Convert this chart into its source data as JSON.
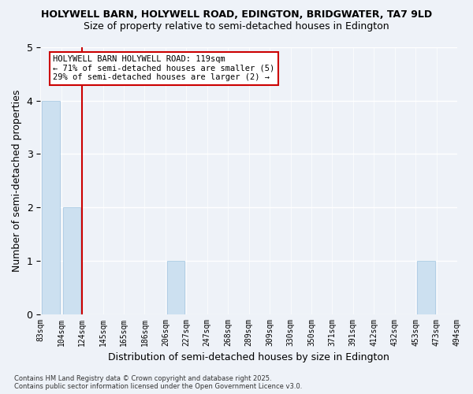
{
  "title1": "HOLYWELL BARN, HOLYWELL ROAD, EDINGTON, BRIDGWATER, TA7 9LD",
  "title2": "Size of property relative to semi-detached houses in Edington",
  "xlabel": "Distribution of semi-detached houses by size in Edington",
  "ylabel": "Number of semi-detached properties",
  "bin_labels": [
    "83sqm",
    "104sqm",
    "124sqm",
    "145sqm",
    "165sqm",
    "186sqm",
    "206sqm",
    "227sqm",
    "247sqm",
    "268sqm",
    "289sqm",
    "309sqm",
    "330sqm",
    "350sqm",
    "371sqm",
    "391sqm",
    "412sqm",
    "432sqm",
    "453sqm",
    "473sqm",
    "494sqm"
  ],
  "values": [
    4,
    2,
    0,
    0,
    0,
    0,
    1,
    0,
    0,
    0,
    0,
    0,
    0,
    0,
    0,
    0,
    0,
    0,
    1,
    0
  ],
  "annotation_title": "HOLYWELL BARN HOLYWELL ROAD: 119sqm",
  "annotation_line1": "← 71% of semi-detached houses are smaller (5)",
  "annotation_line2": "29% of semi-detached houses are larger (2) →",
  "bar_color": "#cce0f0",
  "bar_edge_color": "#a0c4e0",
  "vline_color": "#cc0000",
  "annotation_box_color": "#ffffff",
  "annotation_box_edge": "#cc0000",
  "footer_line1": "Contains HM Land Registry data © Crown copyright and database right 2025.",
  "footer_line2": "Contains public sector information licensed under the Open Government Licence v3.0.",
  "ylim": [
    0,
    5
  ],
  "background_color": "#eef2f8"
}
